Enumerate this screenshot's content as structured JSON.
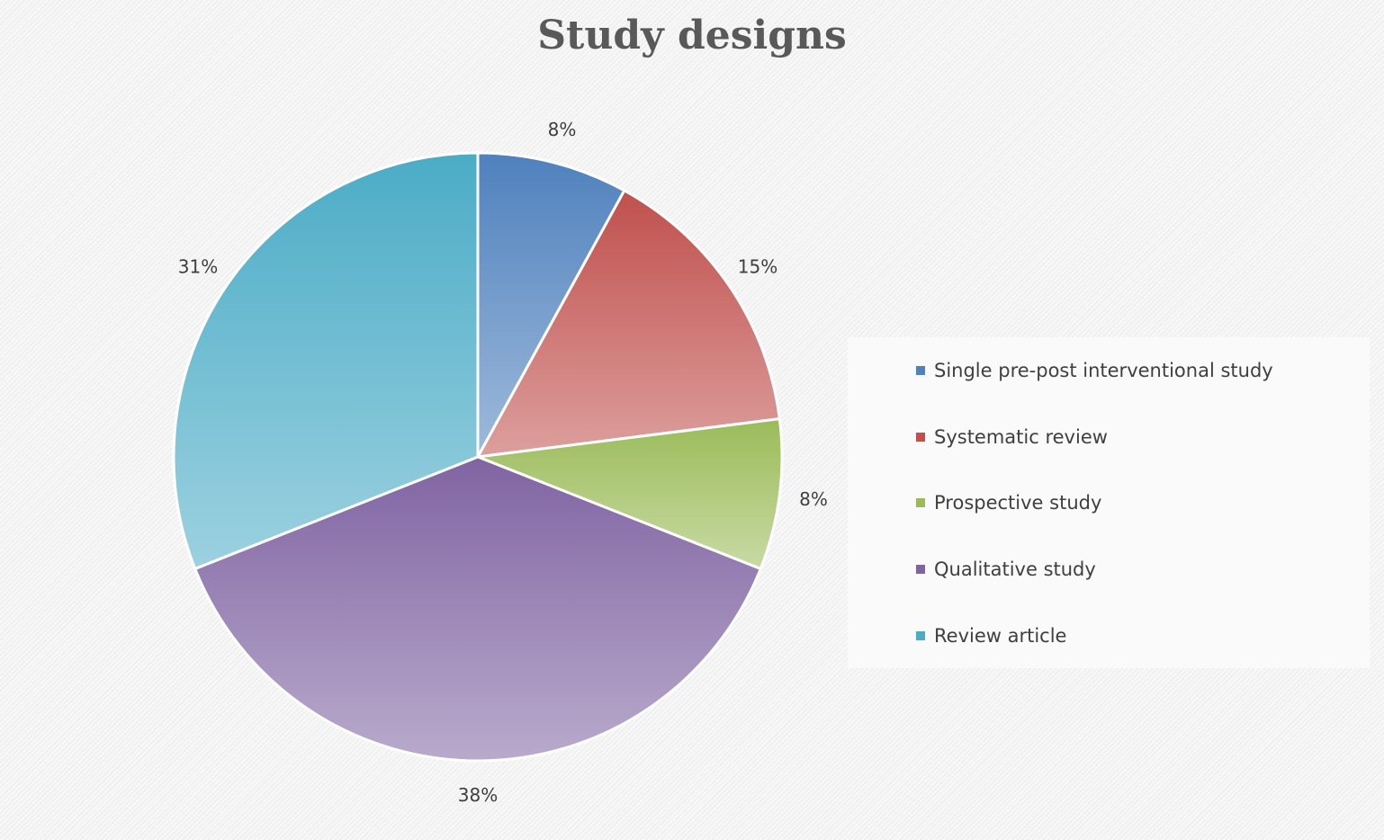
{
  "chart_data": {
    "type": "pie",
    "title": "Study designs",
    "categories": [
      "Single pre-post interventional study",
      "Systematic review",
      "Prospective study",
      "Qualitative study",
      "Review article"
    ],
    "values": [
      8,
      15,
      8,
      38,
      31
    ],
    "value_labels": [
      "8%",
      "15%",
      "8%",
      "38%",
      "31%"
    ],
    "colors": [
      "#4f81bd",
      "#c0504d",
      "#9bbb59",
      "#8064a2",
      "#4bacc6"
    ],
    "legend_position": "right"
  }
}
